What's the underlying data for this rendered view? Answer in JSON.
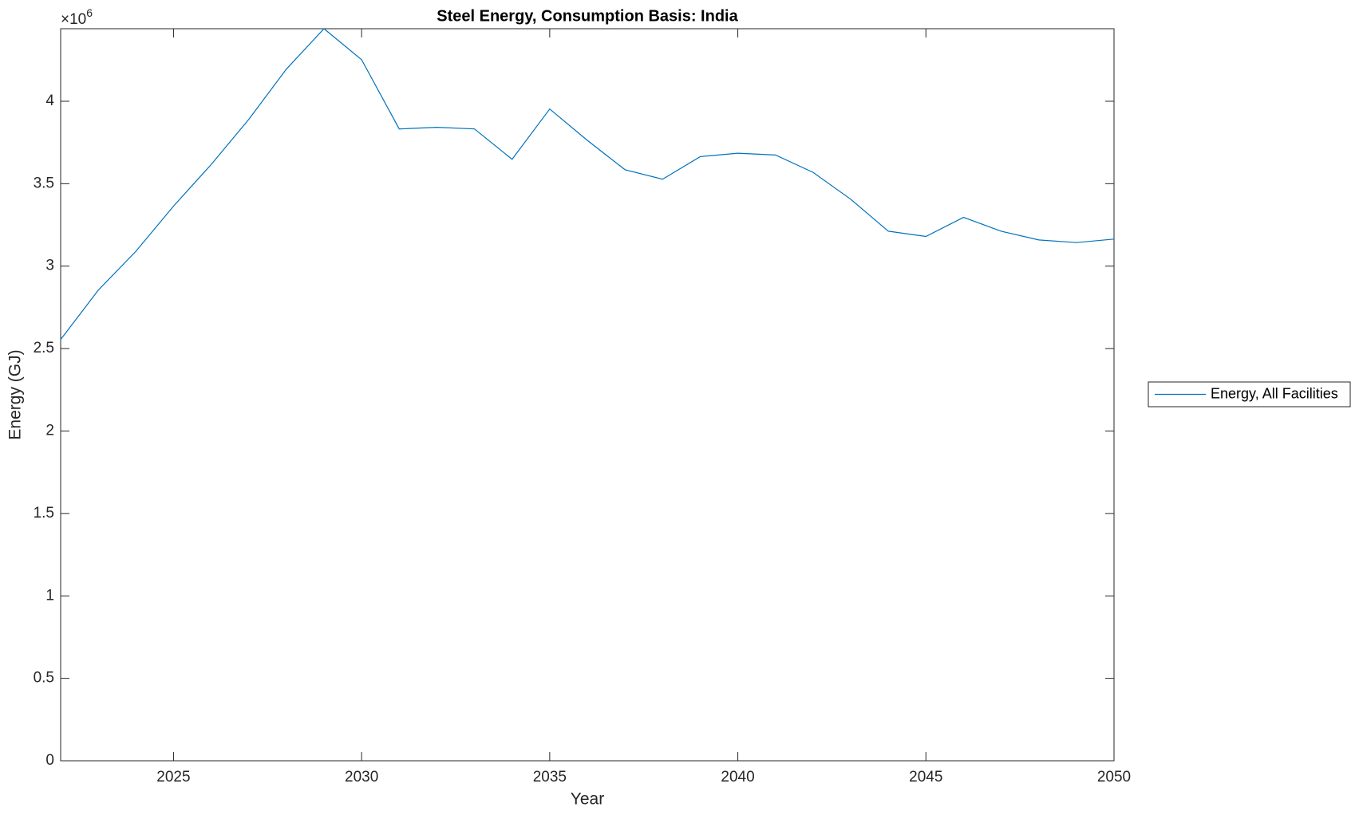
{
  "chart_data": {
    "type": "line",
    "title": "Steel Energy, Consumption Basis: India",
    "x_label": "Year",
    "y_label": "Energy (GJ)",
    "y_multiplier": {
      "base": "×10",
      "power": "6"
    },
    "x": [
      2022,
      2023,
      2024,
      2025,
      2026,
      2027,
      2028,
      2029,
      2030,
      2031,
      2032,
      2033,
      2034,
      2035,
      2036,
      2037,
      2038,
      2039,
      2040,
      2041,
      2042,
      2043,
      2044,
      2045,
      2046,
      2047,
      2048,
      2049,
      2050
    ],
    "series": [
      {
        "name": "Energy, All Facilities",
        "color": "#0072bd",
        "values": [
          2555000,
          2854000,
          3090000,
          3364000,
          3616000,
          3890000,
          4195000,
          4440000,
          4252000,
          3832000,
          3842000,
          3832000,
          3648000,
          3953000,
          3763000,
          3585000,
          3527000,
          3664000,
          3685000,
          3674000,
          3569000,
          3406000,
          3212000,
          3180000,
          3296000,
          3212000,
          3159000,
          3143000,
          3164000
        ]
      }
    ],
    "xlim": [
      2022,
      2050
    ],
    "xticks": [
      2025,
      2030,
      2035,
      2040,
      2045,
      2050
    ],
    "ylim": [
      0,
      4440000
    ],
    "yticks": [
      0,
      {
        "value": 500000,
        "label": "0.5"
      },
      {
        "value": 1000000,
        "label": "1"
      },
      {
        "value": 1500000,
        "label": "1.5"
      },
      {
        "value": 2000000,
        "label": "2"
      },
      {
        "value": 2500000,
        "label": "2.5"
      },
      {
        "value": 3000000,
        "label": "3"
      },
      {
        "value": 3500000,
        "label": "3.5"
      },
      {
        "value": 4000000,
        "label": "4"
      }
    ],
    "grid": false,
    "legend": "outside-right"
  }
}
